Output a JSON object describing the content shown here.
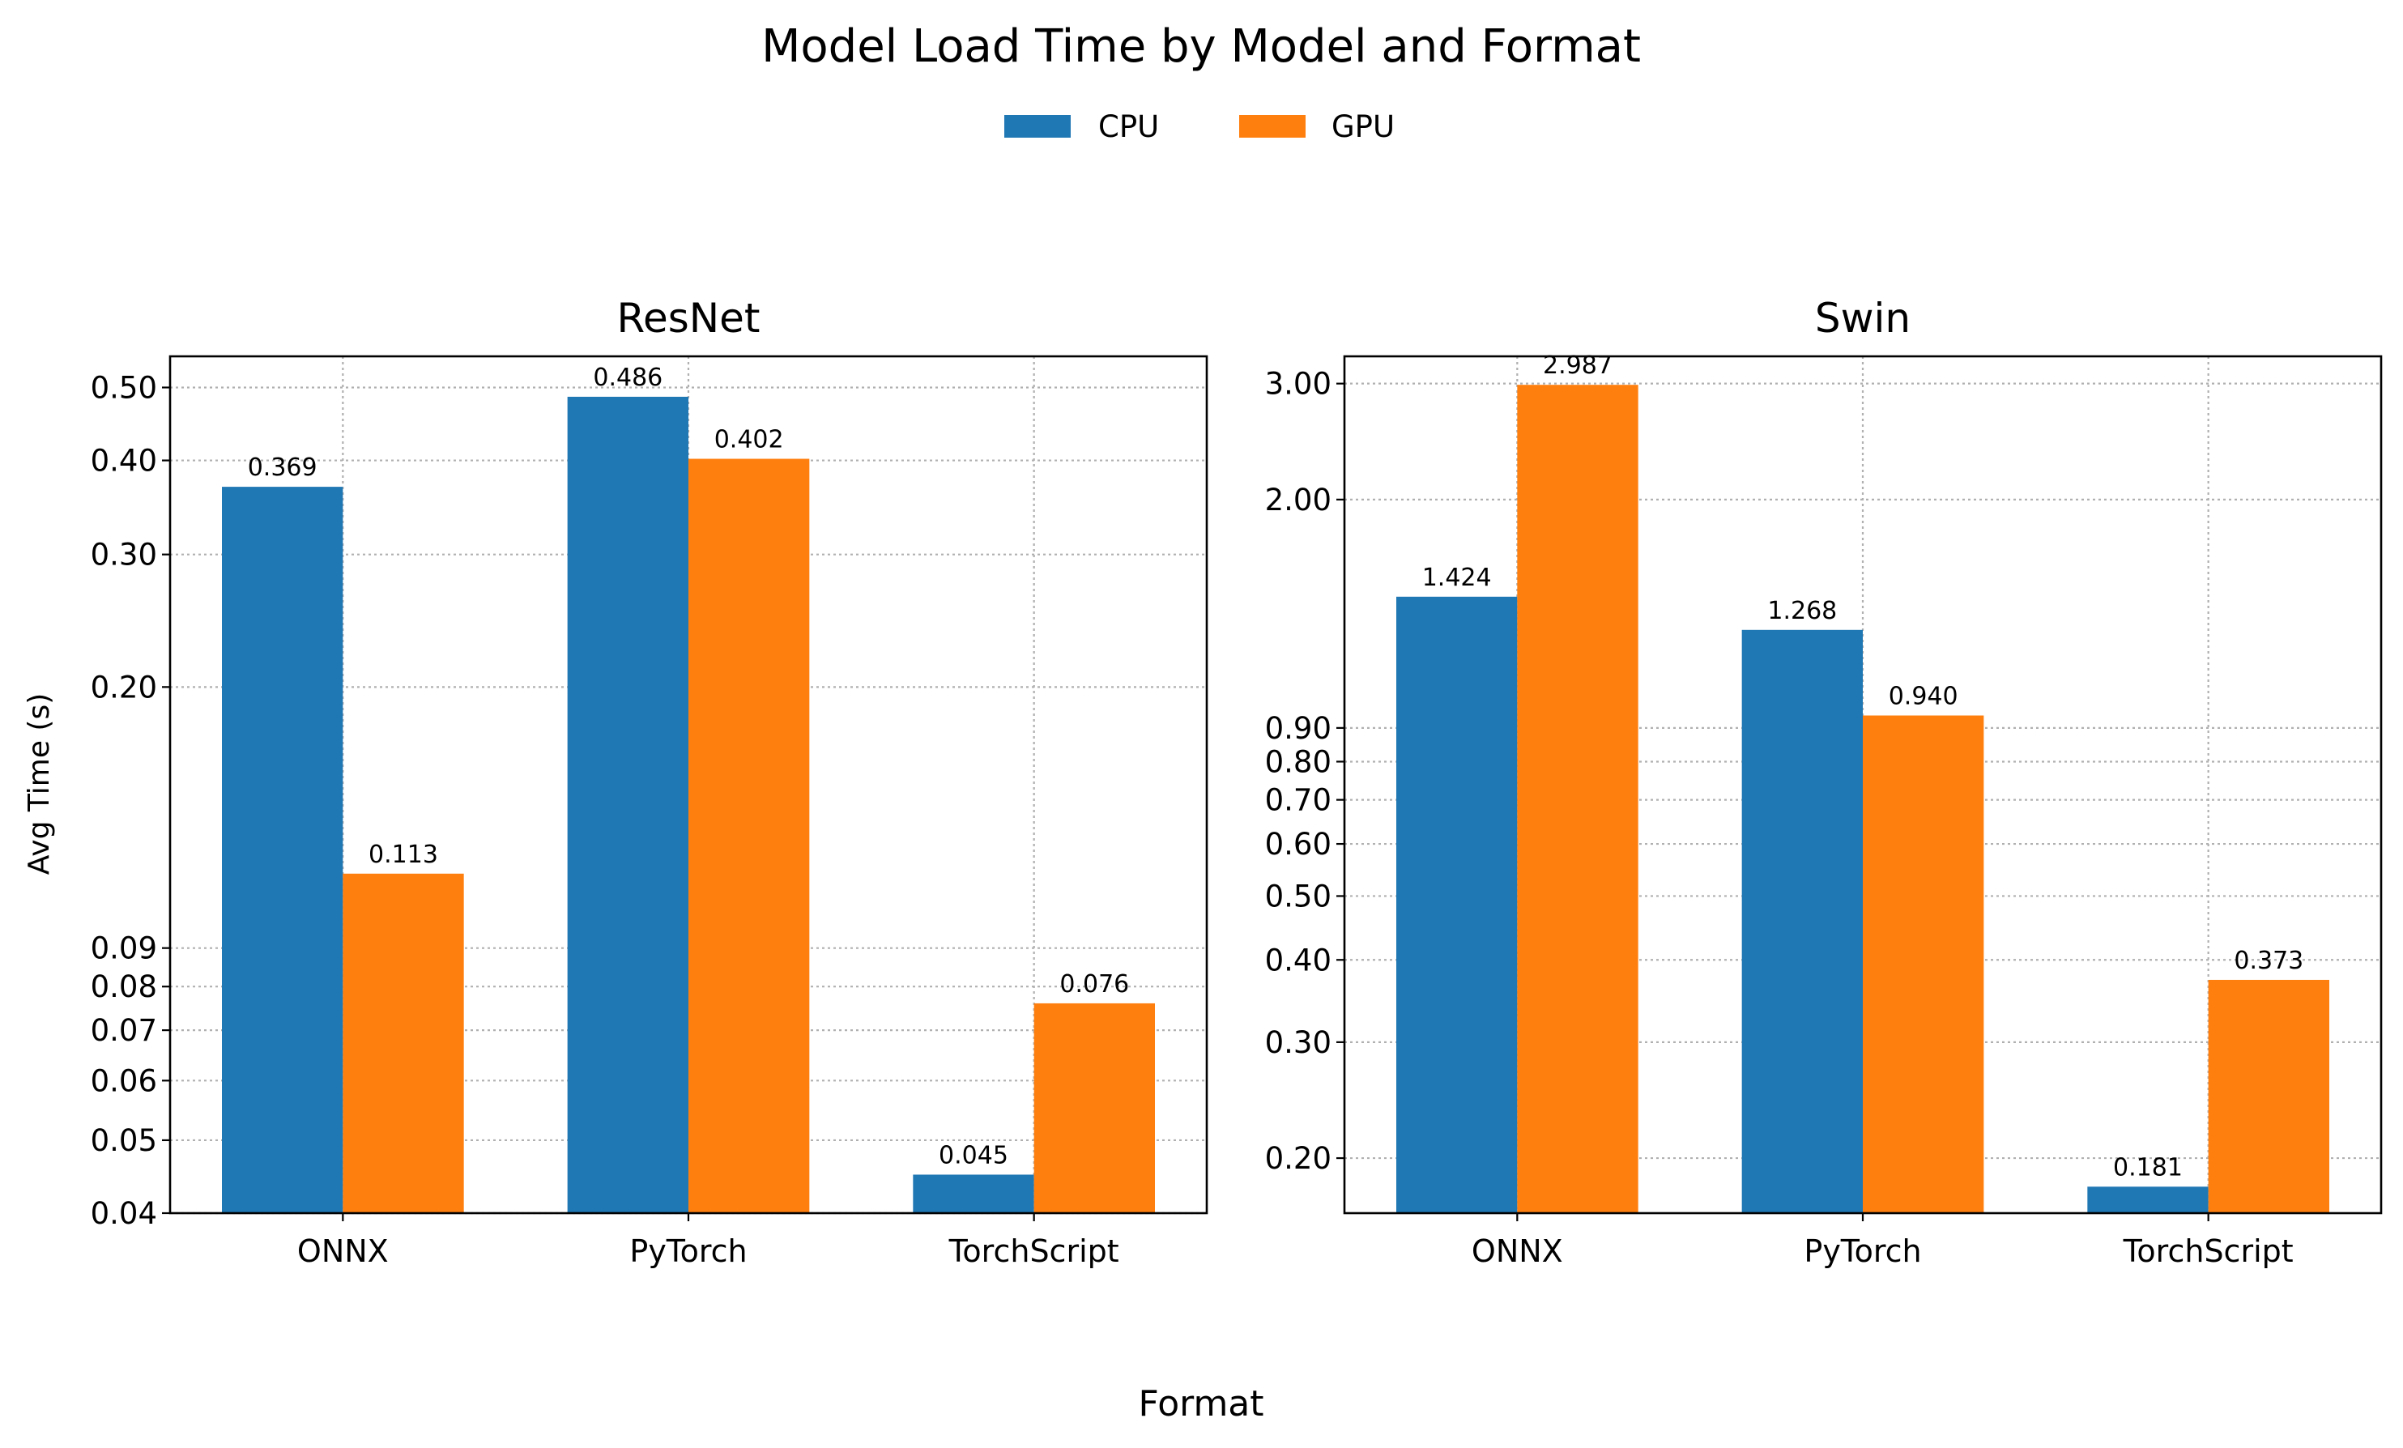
{
  "chart_data": {
    "type": "bar",
    "title": "Model Load Time by Model and Format",
    "xlabel": "Format",
    "ylabel": "Avg Time (s)",
    "legend": {
      "placement": "top-center",
      "entries": [
        {
          "name": "CPU",
          "color": "#1f77b4"
        },
        {
          "name": "GPU",
          "color": "#ff7f0e"
        }
      ]
    },
    "grid": true,
    "yscale": "log",
    "panels": [
      {
        "title": "ResNet",
        "categories": [
          "ONNX",
          "PyTorch",
          "TorchScript"
        ],
        "ylim": [
          0.04,
          0.55
        ],
        "yticks": [
          0.04,
          0.05,
          0.06,
          0.07,
          0.08,
          0.09,
          0.2,
          0.3,
          0.4,
          0.5
        ],
        "ytick_labels": [
          "0.04",
          "0.05",
          "0.06",
          "0.07",
          "0.08",
          "0.09",
          "0.20",
          "0.30",
          "0.40",
          "0.50"
        ],
        "series": [
          {
            "name": "CPU",
            "values": [
              0.369,
              0.486,
              0.045
            ],
            "labels": [
              "0.369",
              "0.486",
              "0.045"
            ]
          },
          {
            "name": "GPU",
            "values": [
              0.113,
              0.402,
              0.076
            ],
            "labels": [
              "0.113",
              "0.402",
              "0.076"
            ]
          }
        ]
      },
      {
        "title": "Swin",
        "categories": [
          "ONNX",
          "PyTorch",
          "TorchScript"
        ],
        "ylim": [
          0.165,
          3.3
        ],
        "yticks": [
          0.2,
          0.3,
          0.4,
          0.5,
          0.6,
          0.7,
          0.8,
          0.9,
          2.0,
          3.0
        ],
        "ytick_labels": [
          "0.20",
          "0.30",
          "0.40",
          "0.50",
          "0.60",
          "0.70",
          "0.80",
          "0.90",
          "2.00",
          "3.00"
        ],
        "series": [
          {
            "name": "CPU",
            "values": [
              1.424,
              1.268,
              0.181
            ],
            "labels": [
              "1.424",
              "1.268",
              "0.181"
            ]
          },
          {
            "name": "GPU",
            "values": [
              2.987,
              0.94,
              0.373
            ],
            "labels": [
              "2.987",
              "0.940",
              "0.373"
            ]
          }
        ]
      }
    ]
  }
}
